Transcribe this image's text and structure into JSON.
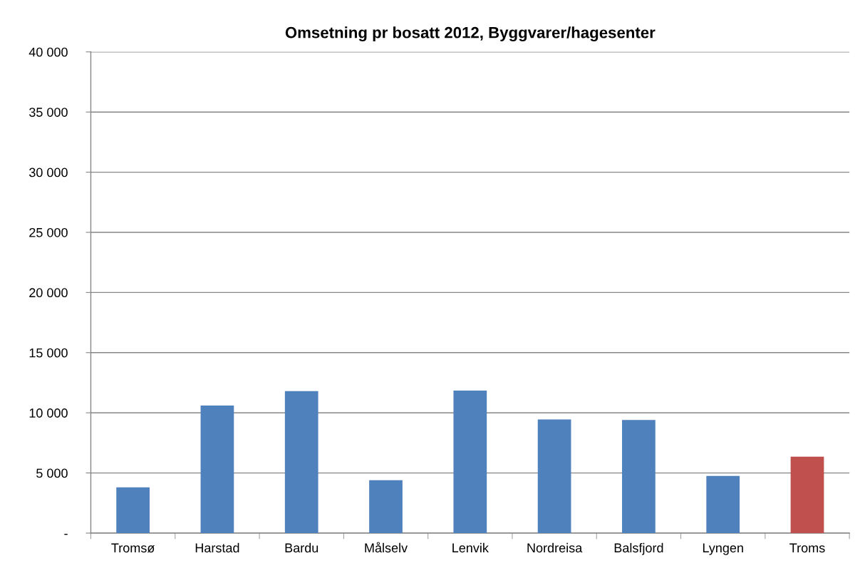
{
  "chart_data": {
    "type": "bar",
    "title": "Omsetning pr bosatt 2012, Byggvarer/hagesenter",
    "categories": [
      "Tromsø",
      "Harstad",
      "Bardu",
      "Målselv",
      "Lenvik",
      "Nordreisa",
      "Balsfjord",
      "Lyngen",
      "Troms"
    ],
    "values": [
      3800,
      10600,
      11800,
      4400,
      11850,
      9450,
      9400,
      4750,
      6350
    ],
    "colors": [
      "#4f81bd",
      "#4f81bd",
      "#4f81bd",
      "#4f81bd",
      "#4f81bd",
      "#4f81bd",
      "#4f81bd",
      "#4f81bd",
      "#c0504d"
    ],
    "ylim": [
      0,
      40000
    ],
    "yticks": [
      {
        "value": 0,
        "label": "-"
      },
      {
        "value": 5000,
        "label": "5 000"
      },
      {
        "value": 10000,
        "label": "10 000"
      },
      {
        "value": 15000,
        "label": "15 000"
      },
      {
        "value": 20000,
        "label": "20 000"
      },
      {
        "value": 25000,
        "label": "25 000"
      },
      {
        "value": 30000,
        "label": "30 000"
      },
      {
        "value": 35000,
        "label": "35 000"
      },
      {
        "value": 40000,
        "label": "40 000"
      }
    ],
    "grid": "y"
  }
}
